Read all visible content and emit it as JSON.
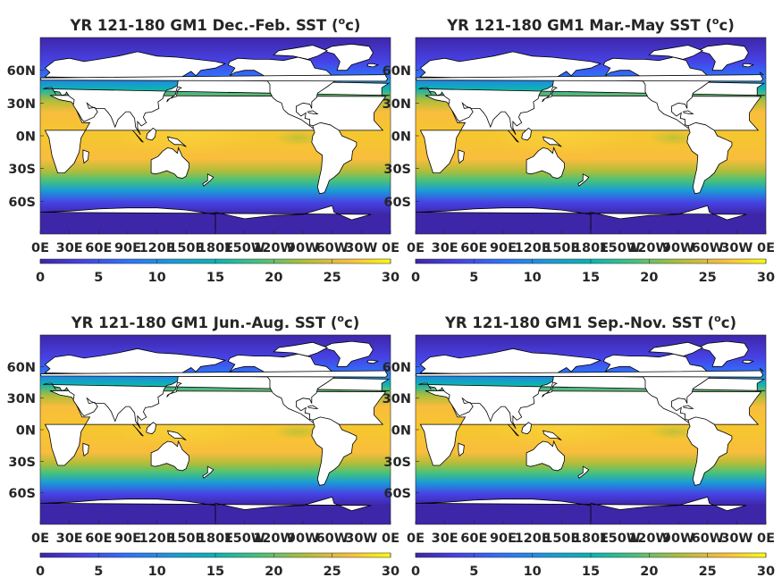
{
  "chart_data": [
    {
      "type": "heatmap",
      "title": "YR 121-180 GM1 Dec.-Feb. SST (",
      "title_sup": "o",
      "title_end": "c)",
      "x_ticks": [
        "0E",
        "30E",
        "60E",
        "90E",
        "120E",
        "150E",
        "180E",
        "150W",
        "120W",
        "90W",
        "60W",
        "30W",
        "0E"
      ],
      "x_range": [
        0,
        360
      ],
      "y_ticks": [
        "60N",
        "30N",
        "0N",
        "30S",
        "60S"
      ],
      "y_tick_values": [
        60,
        30,
        0,
        -30,
        -60
      ],
      "y_range": [
        -90,
        90
      ],
      "colorbar_ticks": [
        "0",
        "5",
        "10",
        "15",
        "20",
        "25",
        "30"
      ],
      "color_range": [
        0,
        30
      ],
      "colormap": "parula",
      "land_color": "#ffffff"
    },
    {
      "type": "heatmap",
      "title": "YR 121-180 GM1 Mar.-May SST (",
      "title_sup": "o",
      "title_end": "c)",
      "x_ticks": [
        "0E",
        "30E",
        "60E",
        "90E",
        "120E",
        "150E",
        "180E",
        "150W",
        "120W",
        "90W",
        "60W",
        "30W",
        "0E"
      ],
      "x_range": [
        0,
        360
      ],
      "y_ticks": [
        "60N",
        "30N",
        "0N",
        "30S",
        "60S"
      ],
      "y_tick_values": [
        60,
        30,
        0,
        -30,
        -60
      ],
      "y_range": [
        -90,
        90
      ],
      "colorbar_ticks": [
        "0",
        "5",
        "10",
        "15",
        "20",
        "25",
        "30"
      ],
      "color_range": [
        0,
        30
      ],
      "colormap": "parula",
      "land_color": "#ffffff"
    },
    {
      "type": "heatmap",
      "title": "YR 121-180 GM1 Jun.-Aug. SST (",
      "title_sup": "o",
      "title_end": "c)",
      "x_ticks": [
        "0E",
        "30E",
        "60E",
        "90E",
        "120E",
        "150E",
        "180E",
        "150W",
        "120W",
        "90W",
        "60W",
        "30W",
        "0E"
      ],
      "x_range": [
        0,
        360
      ],
      "y_ticks": [
        "60N",
        "30N",
        "0N",
        "30S",
        "60S"
      ],
      "y_tick_values": [
        60,
        30,
        0,
        -30,
        -60
      ],
      "y_range": [
        -90,
        90
      ],
      "colorbar_ticks": [
        "0",
        "5",
        "10",
        "15",
        "20",
        "25",
        "30"
      ],
      "color_range": [
        0,
        30
      ],
      "colormap": "parula",
      "land_color": "#ffffff"
    },
    {
      "type": "heatmap",
      "title": "YR 121-180 GM1 Sep.-Nov. SST (",
      "title_sup": "o",
      "title_end": "c)",
      "x_ticks": [
        "0E",
        "30E",
        "60E",
        "90E",
        "120E",
        "150E",
        "180E",
        "150W",
        "120W",
        "90W",
        "60W",
        "30W",
        "0E"
      ],
      "x_range": [
        0,
        360
      ],
      "y_ticks": [
        "60N",
        "30N",
        "0N",
        "30S",
        "60S"
      ],
      "y_tick_values": [
        60,
        30,
        0,
        -30,
        -60
      ],
      "y_range": [
        -90,
        90
      ],
      "colorbar_ticks": [
        "0",
        "5",
        "10",
        "15",
        "20",
        "25",
        "30"
      ],
      "color_range": [
        0,
        30
      ],
      "colormap": "parula",
      "land_color": "#ffffff"
    }
  ]
}
